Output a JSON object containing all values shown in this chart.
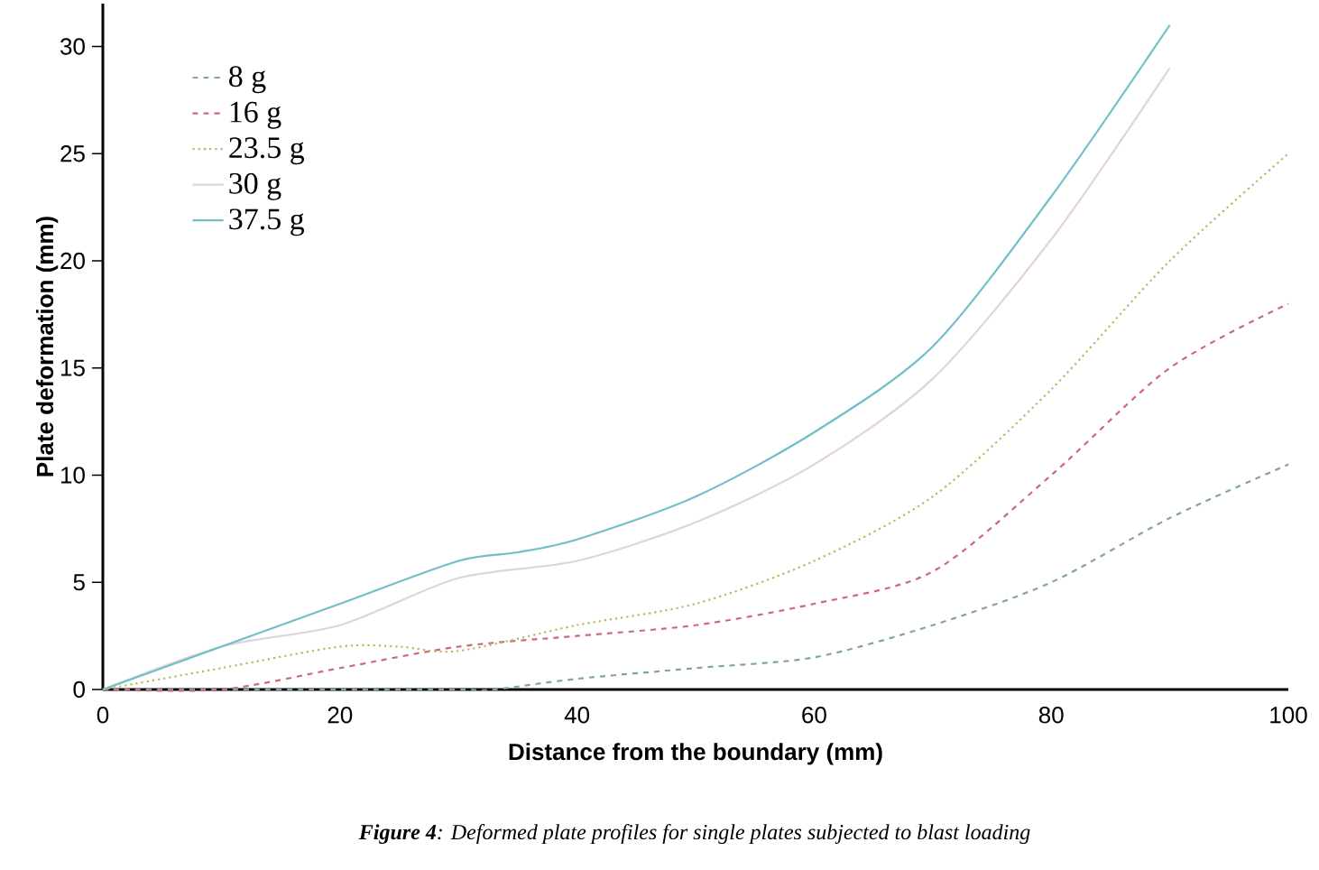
{
  "chart_data": {
    "type": "line",
    "xlabel": "Distance from the boundary (mm)",
    "ylabel": "Plate deformation (mm)",
    "annotations": [
      "**Figure 4**: Deformed plate profiles for single plates subjected to blast loading"
    ],
    "xlim": [
      0,
      100
    ],
    "ylim": [
      0,
      32
    ],
    "xticks": [
      0,
      20,
      40,
      60,
      80,
      100
    ],
    "yticks": [
      0,
      5,
      10,
      15,
      20,
      25,
      30
    ],
    "grid": false,
    "legend": "top left",
    "marker": "none",
    "series": [
      {
        "name": "8 g",
        "color": "#7fa3ad",
        "line_style": "dashed",
        "x": [
          0,
          10,
          20,
          30,
          33,
          40,
          50,
          60,
          70,
          80,
          90,
          100
        ],
        "values": [
          0,
          0,
          0,
          0,
          0,
          0.5,
          1,
          1.5,
          3,
          5,
          8,
          10.5
        ]
      },
      {
        "name": "16 g",
        "color": "#d06878",
        "line_style": "dashed",
        "x": [
          0,
          10,
          20,
          30,
          40,
          50,
          60,
          70,
          80,
          90,
          100
        ],
        "values": [
          0,
          0,
          1,
          2,
          2.5,
          3,
          4,
          5.5,
          10,
          15,
          18
        ]
      },
      {
        "name": "23.5 g",
        "color": "#b8b860",
        "line_style": "dotted",
        "x": [
          0,
          10,
          20,
          25,
          30,
          40,
          50,
          60,
          70,
          80,
          90,
          100
        ],
        "values": [
          0,
          1,
          2,
          2,
          1.8,
          3,
          4,
          6,
          9,
          14,
          20,
          25
        ]
      },
      {
        "name": "30 g",
        "color": "#e2d2da",
        "line_style": "solid",
        "x": [
          0,
          10,
          20,
          30,
          40,
          50,
          60,
          70,
          80,
          90
        ],
        "values": [
          0,
          2,
          3,
          5.2,
          6,
          7.8,
          10.5,
          14.5,
          21,
          29
        ]
      },
      {
        "name": "37.5 g",
        "color": "#6fbfc8",
        "line_style": "solid",
        "x": [
          0,
          10,
          20,
          30,
          35,
          40,
          50,
          60,
          70,
          80,
          90
        ],
        "values": [
          0,
          2,
          4,
          6,
          6.4,
          7,
          9,
          12,
          16,
          23,
          31
        ]
      }
    ]
  }
}
